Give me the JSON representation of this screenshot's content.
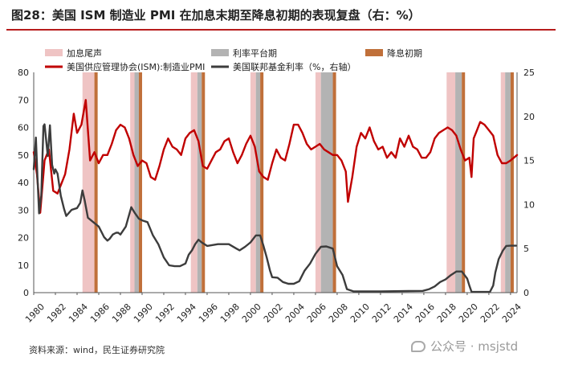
{
  "title": "图28：美国 ISM 制造业 PMI 在加息末期至降息初期的表现复盘（右：%）",
  "source": "资料来源：wind，民生证券研究院",
  "watermark": "公众号 · msjstd",
  "colors": {
    "pmi": "#c00000",
    "fed_rate": "#3c3c3c",
    "late_hike": "#efc4c4",
    "plateau": "#b3b3b3",
    "early_cut": "#c0703a",
    "title_rule": "#b71c1c"
  },
  "chart_data": {
    "type": "line",
    "title": "图28：美国 ISM 制造业 PMI 在加息末期至降息初期的表现复盘（右：%）",
    "legend": {
      "bands": [
        "加息尾声",
        "利率平台期",
        "降息初期"
      ],
      "series": [
        "美国供应管理协会(ISM):制造业PMI",
        "美国联邦基金利率（%，右轴）"
      ],
      "placement": "top"
    },
    "x_ticks": [
      "1980",
      "1982",
      "1984",
      "1986",
      "1988",
      "1990",
      "1992",
      "1994",
      "1996",
      "1998",
      "2000",
      "2002",
      "2004",
      "2006",
      "2008",
      "2010",
      "2012",
      "2014",
      "2016",
      "2018",
      "2020",
      "2022",
      "2024"
    ],
    "xlim": [
      1980,
      2024.6
    ],
    "y_left": {
      "lim": [
        0,
        80
      ],
      "ticks": [
        "0",
        "10",
        "20",
        "30",
        "40",
        "50",
        "60",
        "70",
        "80"
      ]
    },
    "y_right": {
      "lim": [
        0,
        25
      ],
      "ticks": [
        "0",
        "5",
        "10",
        "15",
        "20",
        "25"
      ]
    },
    "grid": false,
    "bands": [
      {
        "kind": "late_hike",
        "start": 1984.5,
        "end": 1985.6
      },
      {
        "kind": "early_cut",
        "start": 1985.6,
        "end": 1985.9
      },
      {
        "kind": "late_hike",
        "start": 1988.9,
        "end": 1989.3
      },
      {
        "kind": "plateau",
        "start": 1989.3,
        "end": 1989.7
      },
      {
        "kind": "early_cut",
        "start": 1989.7,
        "end": 1990.0
      },
      {
        "kind": "late_hike",
        "start": 1994.5,
        "end": 1995.1
      },
      {
        "kind": "plateau",
        "start": 1995.1,
        "end": 1995.5
      },
      {
        "kind": "early_cut",
        "start": 1995.5,
        "end": 1995.8
      },
      {
        "kind": "late_hike",
        "start": 2000.0,
        "end": 2000.5
      },
      {
        "kind": "plateau",
        "start": 2000.5,
        "end": 2000.9
      },
      {
        "kind": "early_cut",
        "start": 2000.9,
        "end": 2001.2
      },
      {
        "kind": "late_hike",
        "start": 2006.0,
        "end": 2006.5
      },
      {
        "kind": "plateau",
        "start": 2006.5,
        "end": 2007.6
      },
      {
        "kind": "early_cut",
        "start": 2007.6,
        "end": 2007.9
      },
      {
        "kind": "late_hike",
        "start": 2018.1,
        "end": 2018.9
      },
      {
        "kind": "plateau",
        "start": 2018.9,
        "end": 2019.5
      },
      {
        "kind": "early_cut",
        "start": 2019.5,
        "end": 2019.8
      },
      {
        "kind": "late_hike",
        "start": 2023.1,
        "end": 2023.5
      },
      {
        "kind": "plateau",
        "start": 2023.5,
        "end": 2024.0
      },
      {
        "kind": "early_cut",
        "start": 2024.0,
        "end": 2024.3
      }
    ],
    "series": [
      {
        "name": "美国供应管理协会(ISM):制造业PMI",
        "axis": "left",
        "x": [
          1980.0,
          1980.3,
          1980.6,
          1981.0,
          1981.4,
          1981.8,
          1982.2,
          1982.5,
          1982.9,
          1983.3,
          1983.7,
          1984.0,
          1984.4,
          1984.8,
          1985.2,
          1985.6,
          1986.0,
          1986.4,
          1986.8,
          1987.2,
          1987.6,
          1988.0,
          1988.4,
          1988.8,
          1989.2,
          1989.6,
          1990.0,
          1990.4,
          1990.8,
          1991.2,
          1991.6,
          1992.0,
          1992.4,
          1992.8,
          1993.2,
          1993.6,
          1994.0,
          1994.4,
          1994.8,
          1995.2,
          1995.6,
          1996.0,
          1996.4,
          1996.8,
          1997.2,
          1997.6,
          1998.0,
          1998.4,
          1998.8,
          1999.2,
          1999.6,
          2000.0,
          2000.4,
          2000.8,
          2001.2,
          2001.6,
          2002.0,
          2002.4,
          2002.8,
          2003.2,
          2003.6,
          2004.0,
          2004.4,
          2004.8,
          2005.2,
          2005.6,
          2006.0,
          2006.4,
          2006.8,
          2007.2,
          2007.6,
          2008.0,
          2008.4,
          2008.8,
          2009.0,
          2009.4,
          2009.8,
          2010.2,
          2010.6,
          2011.0,
          2011.4,
          2011.8,
          2012.2,
          2012.6,
          2013.0,
          2013.4,
          2013.8,
          2014.2,
          2014.6,
          2015.0,
          2015.4,
          2015.8,
          2016.2,
          2016.6,
          2017.0,
          2017.4,
          2017.8,
          2018.2,
          2018.6,
          2019.0,
          2019.4,
          2019.8,
          2020.2,
          2020.4,
          2020.6,
          2020.9,
          2021.2,
          2021.6,
          2022.0,
          2022.4,
          2022.8,
          2023.2,
          2023.6,
          2024.0,
          2024.3,
          2024.6
        ],
        "values": [
          51,
          43,
          29,
          48,
          52,
          37,
          36,
          39,
          43,
          52,
          65,
          58,
          61,
          70,
          48,
          51,
          47,
          50,
          50,
          54,
          59,
          61,
          60,
          56,
          50,
          46,
          48,
          47,
          42,
          41,
          46,
          52,
          56,
          53,
          52,
          50,
          56,
          58,
          59,
          55,
          46,
          45,
          48,
          51,
          52,
          55,
          56,
          51,
          47,
          50,
          54,
          57,
          53,
          44,
          42,
          41,
          47,
          52,
          49,
          48,
          54,
          61,
          61,
          58,
          54,
          52,
          53,
          54,
          52,
          51,
          50,
          50,
          48,
          44,
          33,
          42,
          53,
          58,
          56,
          60,
          55,
          52,
          53,
          49,
          51,
          49,
          56,
          53,
          57,
          53,
          52,
          49,
          49,
          51,
          56,
          58,
          59,
          60,
          59,
          57,
          52,
          48,
          49,
          42,
          56,
          59,
          62,
          61,
          59,
          57,
          50,
          47,
          47,
          48,
          49,
          50
        ]
      },
      {
        "name": "美国联邦基金利率（%，右轴）",
        "axis": "right",
        "x": [
          1980.0,
          1980.2,
          1980.35,
          1980.5,
          1980.7,
          1980.9,
          1981.0,
          1981.3,
          1981.5,
          1981.7,
          1981.9,
          1982.0,
          1982.2,
          1982.5,
          1982.8,
          1983.0,
          1983.5,
          1984.0,
          1984.3,
          1984.5,
          1984.7,
          1985.0,
          1985.5,
          1986.0,
          1986.5,
          1986.8,
          1987.0,
          1987.3,
          1987.6,
          1987.8,
          1988.0,
          1988.5,
          1989.0,
          1989.3,
          1989.7,
          1990.0,
          1990.5,
          1991.0,
          1991.5,
          1992.0,
          1992.5,
          1993.0,
          1993.5,
          1994.0,
          1994.3,
          1994.6,
          1994.9,
          1995.2,
          1995.5,
          1996.0,
          1997.0,
          1998.0,
          1998.7,
          1999.0,
          1999.5,
          2000.0,
          2000.5,
          2000.9,
          2001.2,
          2001.5,
          2001.8,
          2002.0,
          2002.5,
          2003.0,
          2003.5,
          2004.0,
          2004.5,
          2005.0,
          2005.5,
          2006.0,
          2006.5,
          2007.0,
          2007.6,
          2008.0,
          2008.5,
          2008.9,
          2009.5,
          2012.0,
          2015.9,
          2016.5,
          2017.0,
          2017.5,
          2018.0,
          2018.5,
          2019.0,
          2019.5,
          2020.0,
          2020.2,
          2020.4,
          2021.0,
          2022.1,
          2022.4,
          2022.6,
          2022.9,
          2023.3,
          2023.6,
          2024.0,
          2024.5
        ],
        "values": [
          14.0,
          17.6,
          13.0,
          9.0,
          11.0,
          18.9,
          19.1,
          15.5,
          19.0,
          14.5,
          13.5,
          14.0,
          13.5,
          11.0,
          9.5,
          8.7,
          9.4,
          9.6,
          10.2,
          11.6,
          10.5,
          8.5,
          8.0,
          7.5,
          6.3,
          5.9,
          6.1,
          6.6,
          6.8,
          6.8,
          6.6,
          7.5,
          9.7,
          9.1,
          8.4,
          8.2,
          8.0,
          6.5,
          5.5,
          4.0,
          3.1,
          3.0,
          3.0,
          3.3,
          4.3,
          4.8,
          5.5,
          6.0,
          5.7,
          5.3,
          5.5,
          5.5,
          5.0,
          4.8,
          5.2,
          5.7,
          6.5,
          6.5,
          5.3,
          4.0,
          2.5,
          1.75,
          1.7,
          1.2,
          1.0,
          1.0,
          1.3,
          2.5,
          3.3,
          4.4,
          5.2,
          5.25,
          5.0,
          3.0,
          2.0,
          0.4,
          0.15,
          0.15,
          0.2,
          0.4,
          0.7,
          1.2,
          1.5,
          2.0,
          2.4,
          2.4,
          1.6,
          0.8,
          0.1,
          0.08,
          0.1,
          0.8,
          2.3,
          3.8,
          4.8,
          5.3,
          5.33,
          5.33
        ]
      }
    ]
  }
}
